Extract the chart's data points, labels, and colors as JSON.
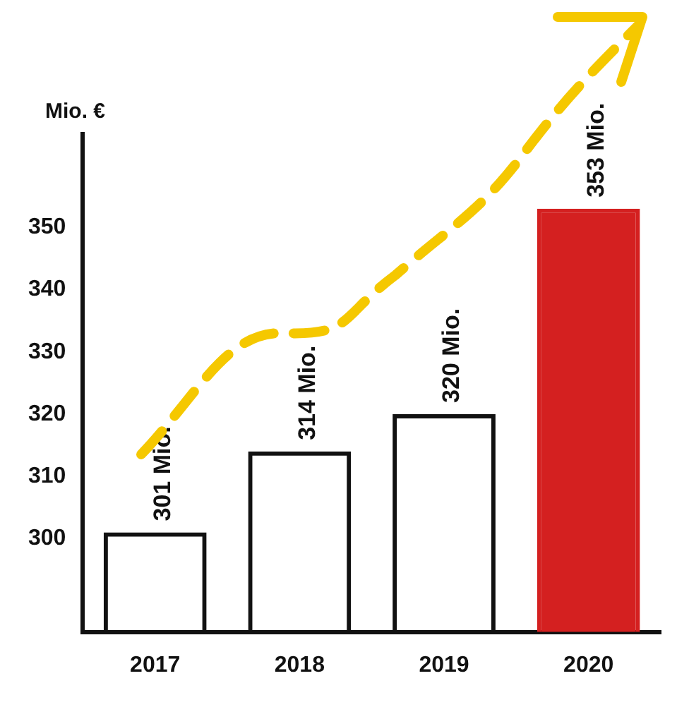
{
  "chart_data": {
    "type": "bar",
    "ylabel": "Mio. €",
    "categories": [
      "2017",
      "2018",
      "2019",
      "2020"
    ],
    "values": [
      301,
      314,
      320,
      353
    ],
    "colors": [
      "#111111",
      "#111111",
      "#111111",
      "#d42020"
    ],
    "value_labels": [
      "301 Mio.",
      "314 Mio.",
      "320 Mio.",
      "353 Mio."
    ],
    "ylim": [
      285,
      365
    ],
    "yticks": [
      300,
      310,
      320,
      330,
      340,
      350
    ],
    "grid": false,
    "legend": false
  }
}
